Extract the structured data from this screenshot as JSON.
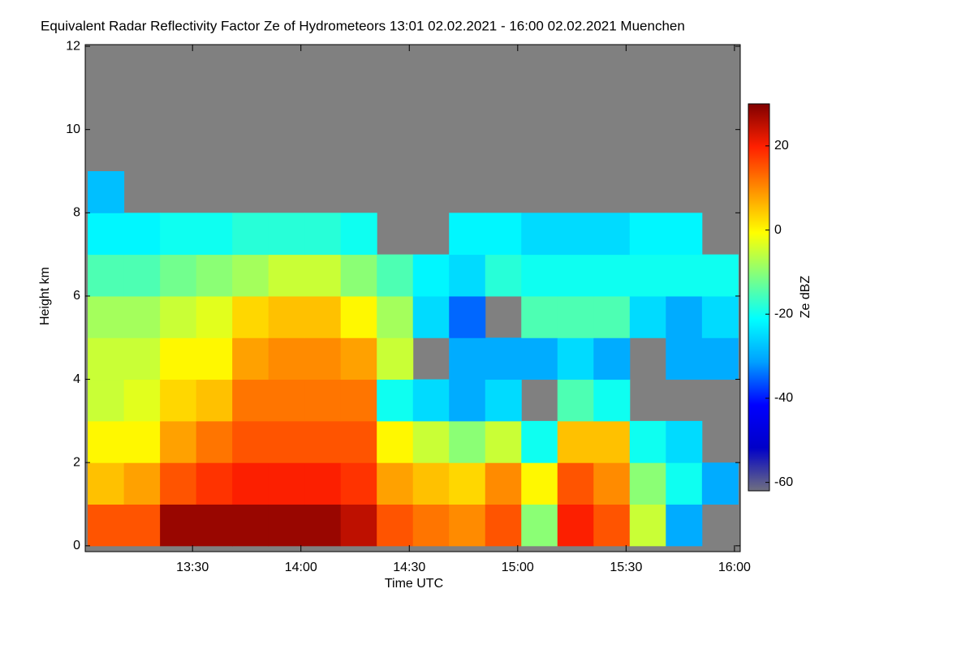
{
  "chart_data": {
    "type": "heatmap",
    "title": "Equivalent Radar Reflectivity Factor Ze of Hydrometeors   13:01 02.02.2021 - 16:00 02.02.2021 Muenchen",
    "xlabel": "Time UTC",
    "ylabel": "Height km",
    "zlabel": "Ze dBZ",
    "xlim": [
      780.3,
      961.6
    ],
    "ylim": [
      -0.14,
      12.04
    ],
    "zlim": [
      -62,
      30
    ],
    "xticks": [
      {
        "value": 810,
        "label": "13:30"
      },
      {
        "value": 840,
        "label": "14:00"
      },
      {
        "value": 870,
        "label": "14:30"
      },
      {
        "value": 900,
        "label": "15:00"
      },
      {
        "value": 930,
        "label": "15:30"
      },
      {
        "value": 960,
        "label": "16:00"
      }
    ],
    "yticks": [
      0,
      2,
      4,
      6,
      8,
      10,
      12
    ],
    "zticks": [
      20,
      0,
      -20,
      -40,
      -60
    ],
    "missing_color": "#808080",
    "colormap": [
      "#707080",
      "#0000c8",
      "#0000ff",
      "#00a0ff",
      "#00ffff",
      "#80ff80",
      "#ffff00",
      "#ff9000",
      "#ff2000",
      "#800000"
    ],
    "x_bins": [
      781,
      791,
      801,
      811,
      821,
      831,
      841,
      851,
      861,
      871,
      881,
      891,
      901,
      911,
      921,
      931,
      941,
      951,
      961
    ],
    "y_bins": [
      0,
      1,
      2,
      3,
      4,
      5,
      6,
      7,
      8,
      9
    ],
    "z": [
      [
        15,
        15,
        28,
        28,
        28,
        28,
        28,
        25,
        15,
        12,
        10,
        15,
        -10,
        20,
        15,
        -5,
        -30,
        null
      ],
      [
        5,
        8,
        15,
        18,
        20,
        20,
        20,
        18,
        8,
        5,
        3,
        10,
        0,
        15,
        10,
        -10,
        -20,
        -30
      ],
      [
        0,
        0,
        8,
        12,
        15,
        15,
        15,
        15,
        0,
        -5,
        -10,
        -5,
        -20,
        5,
        5,
        -20,
        -25,
        null
      ],
      [
        -5,
        -3,
        3,
        5,
        12,
        12,
        12,
        12,
        -20,
        -25,
        -30,
        -25,
        null,
        -15,
        -20,
        null,
        null,
        null
      ],
      [
        -5,
        -5,
        0,
        0,
        8,
        10,
        10,
        8,
        -5,
        null,
        -30,
        -30,
        -30,
        -25,
        -30,
        null,
        -30,
        -30
      ],
      [
        -8,
        -8,
        -5,
        -3,
        3,
        5,
        5,
        0,
        -8,
        -25,
        -35,
        null,
        -15,
        -15,
        -15,
        -25,
        -30,
        -25
      ],
      [
        -15,
        -15,
        -12,
        -10,
        -8,
        -5,
        -5,
        -10,
        -15,
        -22,
        -25,
        -18,
        -20,
        -20,
        -20,
        -20,
        -20,
        -20
      ],
      [
        -22,
        -22,
        -20,
        -20,
        -18,
        -18,
        -18,
        -20,
        null,
        null,
        -22,
        -22,
        -25,
        -25,
        -25,
        -22,
        -22,
        null
      ],
      [
        -28,
        null,
        null,
        null,
        null,
        null,
        null,
        null,
        null,
        null,
        null,
        null,
        null,
        null,
        null,
        null,
        null,
        null
      ]
    ]
  }
}
